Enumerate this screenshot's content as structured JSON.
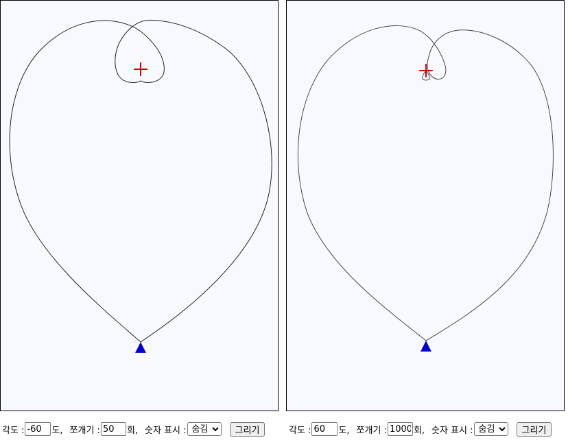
{
  "panels": [
    {
      "angle_label": "각도 :",
      "angle_value": "-60",
      "angle_unit": "도,",
      "fold_label": "쪼개기 :",
      "fold_value": "50",
      "fold_unit": "회,",
      "number_label": "숫자 표시 :",
      "number_option": "숨김",
      "draw_button": "그리기"
    },
    {
      "angle_label": "각도 :",
      "angle_value": "60",
      "angle_unit": "도,",
      "fold_label": "쪼개기 :",
      "fold_value": "1000",
      "fold_unit": "회,",
      "number_label": "숫자 표시 :",
      "number_option": "숨김",
      "draw_button": "그리기"
    }
  ],
  "colors": {
    "canvas_bg": "#f8f9ff",
    "curve": "#222222",
    "cross_marker": "#cc0000",
    "triangle_marker": "#0000cc"
  },
  "icons": {
    "cross": "plus-cross",
    "triangle": "up-triangle"
  }
}
